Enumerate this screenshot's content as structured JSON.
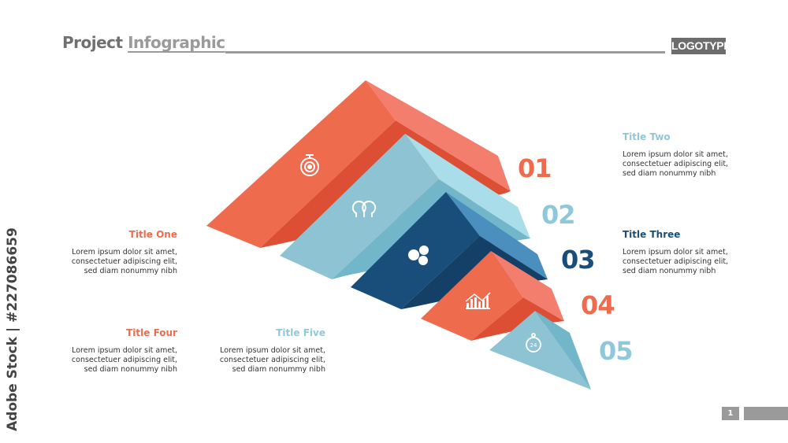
{
  "header": {
    "title_part1": "Project",
    "title_part2": "Infographic",
    "logo": "LOGOTYPE"
  },
  "colors": {
    "orange": "#ef6b4d",
    "light_blue": "#8ec8da",
    "navy": "#1a4e7a",
    "gray": "#9a9a9a"
  },
  "steps": [
    {
      "number": "01",
      "icon": "stopwatch-gear-icon",
      "title": "Title One",
      "body": [
        "Lorem ipsum dolor sit amet,",
        "consectetuer adipiscing elit,",
        "sed diam nonummy nibh"
      ]
    },
    {
      "number": "02",
      "icon": "two-heads-icon",
      "title": "Title Two",
      "body": [
        "Lorem ipsum dolor sit amet,",
        "consectetuer adipiscing elit,",
        "sed diam nonummy nibh"
      ]
    },
    {
      "number": "03",
      "icon": "speech-bubbles-icon",
      "title": "Title Three",
      "body": [
        "Lorem ipsum dolor sit amet,",
        "consectetuer adipiscing elit,",
        "sed diam nonummy nibh"
      ]
    },
    {
      "number": "04",
      "icon": "bar-chart-icon",
      "title": "Title Four",
      "body": [
        "Lorem ipsum dolor sit amet,",
        "consectetuer adipiscing elit,",
        "sed diam nonummy nibh"
      ]
    },
    {
      "number": "05",
      "icon": "24h-clock-icon",
      "title": "Title Five",
      "body": [
        "Lorem ipsum dolor sit amet,",
        "consectetuer adipiscing elit,",
        "sed diam nonummy nibh"
      ]
    }
  ],
  "watermark": "Adobe Stock | #227086659",
  "footer": {
    "page_number": "1"
  }
}
